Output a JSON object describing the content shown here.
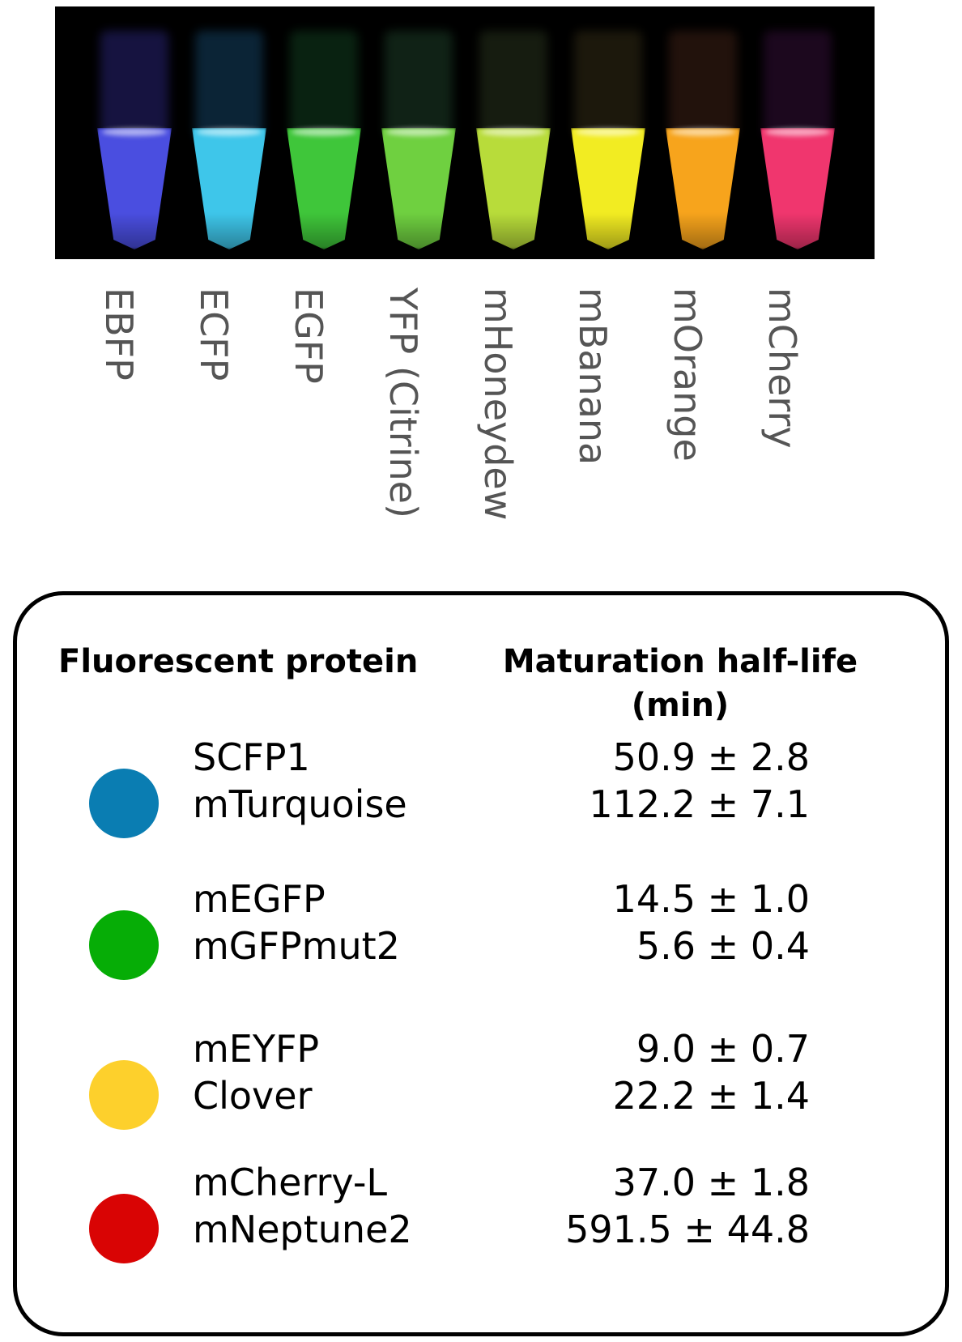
{
  "tubes": [
    {
      "label": "EBFP",
      "cap_color": "#3a34a8",
      "liquid_color": "#4a4ee0"
    },
    {
      "label": "ECFP",
      "cap_color": "#1d5f8f",
      "liquid_color": "#3ec6ea"
    },
    {
      "label": "EGFP",
      "cap_color": "#1a5a2e",
      "liquid_color": "#3fc63a"
    },
    {
      "label": "YFP (Citrine)",
      "cap_color": "#2a5a3a",
      "liquid_color": "#6fd040"
    },
    {
      "label": "mHoneydew",
      "cap_color": "#3a4a2a",
      "liquid_color": "#b8dc3a"
    },
    {
      "label": "mBanana",
      "cap_color": "#4a4020",
      "liquid_color": "#f2ec22"
    },
    {
      "label": "mOrange",
      "cap_color": "#5a3020",
      "liquid_color": "#f7a41c"
    },
    {
      "label": "mCherry",
      "cap_color": "#4a1550",
      "liquid_color": "#f0366e"
    }
  ],
  "table": {
    "header_protein": "Fluorescent protein",
    "header_maturation_line1": "Maturation half-life",
    "header_maturation_line2": "(min)",
    "groups": [
      {
        "color": "#0a7db2",
        "proteins": [
          "SCFP1",
          "mTurquoise"
        ],
        "values": [
          "50.9 ± 2.8",
          "112.2 ± 7.1"
        ]
      },
      {
        "color": "#06ad06",
        "proteins": [
          "mEGFP",
          "mGFPmut2"
        ],
        "values": [
          "14.5 ± 1.0",
          "5.6 ± 0.4"
        ]
      },
      {
        "color": "#fdd02c",
        "proteins": [
          "mEYFP",
          "Clover"
        ],
        "values": [
          "9.0 ± 0.7",
          "22.2 ± 1.4"
        ]
      },
      {
        "color": "#d90404",
        "proteins": [
          "mCherry-L",
          "mNeptune2"
        ],
        "values": [
          "37.0 ± 1.8",
          "591.5 ± 44.8"
        ]
      }
    ]
  }
}
